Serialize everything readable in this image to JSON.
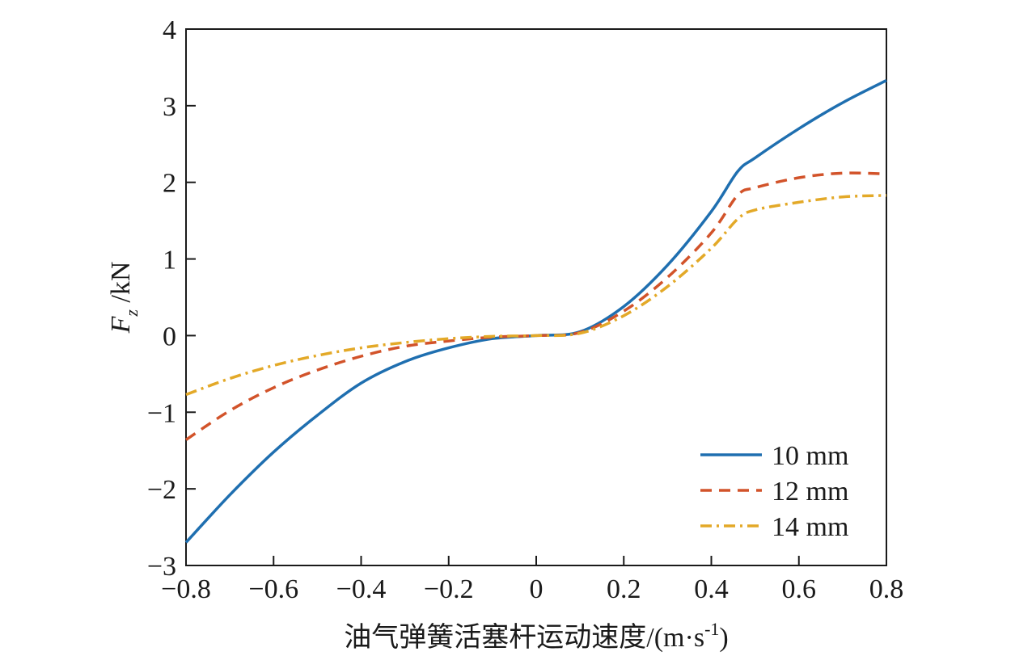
{
  "chart_data": {
    "type": "line",
    "xlabel": "油气弹簧活塞杆运动速度/(m·s",
    "xlabel_sup": "-1",
    "xlabel_tail": ")",
    "ylabel_var": "F",
    "ylabel_sub": "z",
    "ylabel_unit": " /kN",
    "xlim": [
      -0.8,
      0.8
    ],
    "ylim": [
      -3,
      4
    ],
    "xticks": [
      -0.8,
      -0.6,
      -0.4,
      -0.2,
      0,
      0.2,
      0.4,
      0.6,
      0.8
    ],
    "xtick_labels": [
      "−0.8",
      "−0.6",
      "−0.4",
      "−0.2",
      "0",
      "0.2",
      "0.4",
      "0.6",
      "0.8"
    ],
    "yticks": [
      -3,
      -2,
      -1,
      0,
      1,
      2,
      3,
      4
    ],
    "ytick_labels": [
      "−3",
      "−2",
      "−1",
      "0",
      "1",
      "2",
      "3",
      "4"
    ],
    "grid": false,
    "legend_position": "bottom-right",
    "x": [
      -0.8,
      -0.7,
      -0.6,
      -0.5,
      -0.4,
      -0.3,
      -0.2,
      -0.1,
      0,
      0.1,
      0.2,
      0.3,
      0.4,
      0.46,
      0.5,
      0.6,
      0.7,
      0.8
    ],
    "series": [
      {
        "name": "10 mm",
        "color": "#1f6fb0",
        "dash": "solid",
        "values": [
          -2.7,
          -2.08,
          -1.52,
          -1.04,
          -0.62,
          -0.34,
          -0.16,
          -0.04,
          0.0,
          0.05,
          0.38,
          0.92,
          1.62,
          2.14,
          2.32,
          2.7,
          3.04,
          3.33
        ]
      },
      {
        "name": "12 mm",
        "color": "#d2532a",
        "dash": "dashed",
        "values": [
          -1.36,
          -0.98,
          -0.68,
          -0.45,
          -0.27,
          -0.14,
          -0.07,
          -0.02,
          0.0,
          0.04,
          0.32,
          0.76,
          1.34,
          1.83,
          1.93,
          2.06,
          2.12,
          2.11
        ]
      },
      {
        "name": "14 mm",
        "color": "#e3a928",
        "dash": "dashdot",
        "values": [
          -0.77,
          -0.56,
          -0.39,
          -0.26,
          -0.16,
          -0.09,
          -0.04,
          -0.01,
          0.0,
          0.03,
          0.26,
          0.64,
          1.14,
          1.52,
          1.64,
          1.74,
          1.81,
          1.83
        ]
      }
    ]
  }
}
